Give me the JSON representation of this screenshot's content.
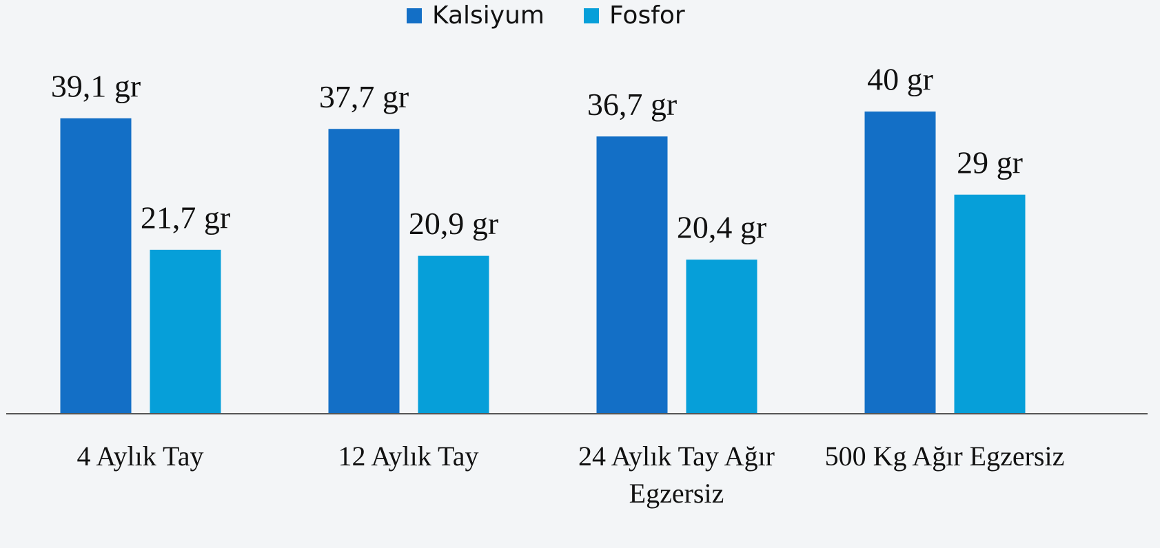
{
  "chart_data": {
    "type": "bar",
    "categories": [
      "4 Aylık Tay",
      "12 Aylık Tay",
      "24 Aylık Tay Ağır Egzersiz",
      "500 Kg Ağır Egzersiz"
    ],
    "series": [
      {
        "name": "Kalsiyum",
        "color": "#136fc6",
        "values": [
          39.1,
          37.7,
          36.7,
          40
        ],
        "value_labels": [
          "39,1 gr",
          "37,7 gr",
          "36,7 gr",
          "40 gr"
        ]
      },
      {
        "name": "Fosfor",
        "color": "#069fd9",
        "values": [
          21.7,
          20.9,
          20.4,
          29
        ],
        "value_labels": [
          "21,7 gr",
          "20,9 gr",
          "20,4 gr",
          "29 gr"
        ]
      }
    ]
  }
}
